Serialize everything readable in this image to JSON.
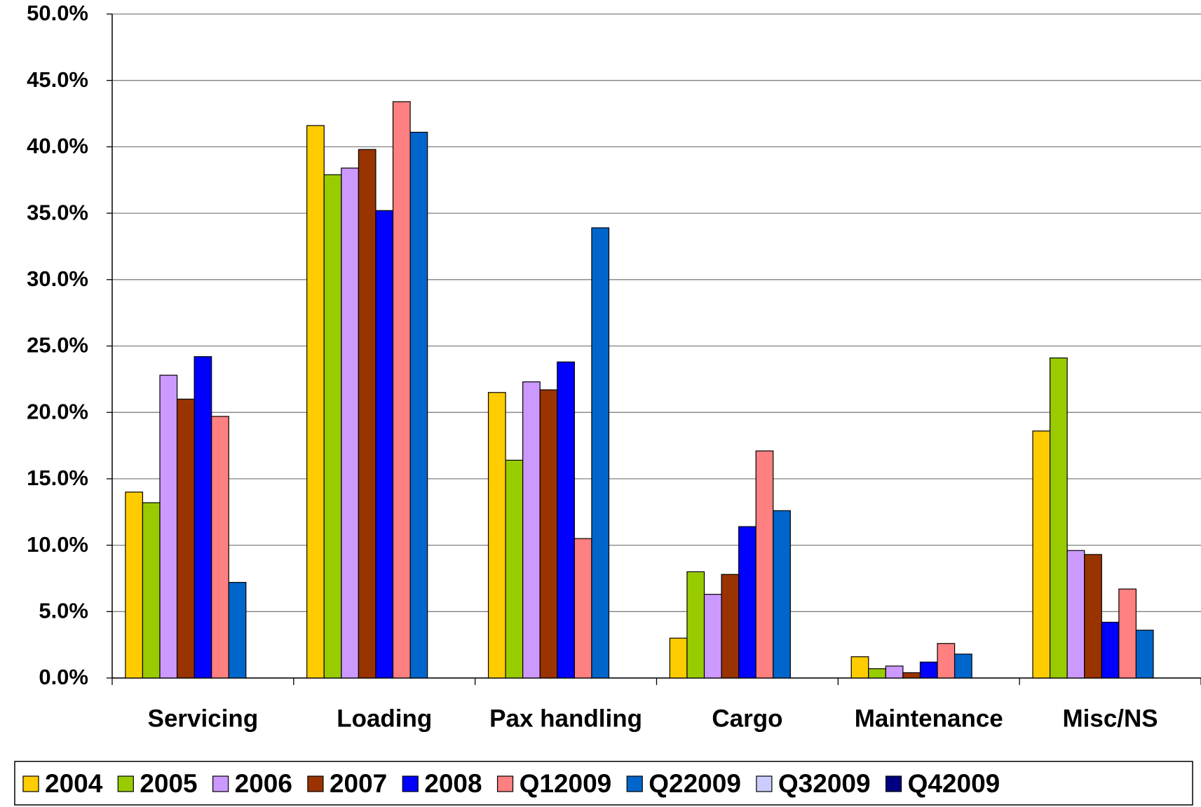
{
  "chart_data": {
    "type": "bar",
    "categories": [
      "Servicing",
      "Loading",
      "Pax handling",
      "Cargo",
      "Maintenance",
      "Misc/NS"
    ],
    "series": [
      {
        "name": "2004",
        "color": "#FFCC00",
        "values": [
          14.0,
          41.6,
          21.5,
          3.0,
          1.6,
          18.6
        ]
      },
      {
        "name": "2005",
        "color": "#99CC00",
        "values": [
          13.2,
          37.9,
          16.4,
          8.0,
          0.7,
          24.1
        ]
      },
      {
        "name": "2006",
        "color": "#CC99FF",
        "values": [
          22.8,
          38.4,
          22.3,
          6.3,
          0.9,
          9.6
        ]
      },
      {
        "name": "2007",
        "color": "#993300",
        "values": [
          21.0,
          39.8,
          21.7,
          7.8,
          0.4,
          9.3
        ]
      },
      {
        "name": "2008",
        "color": "#0000FF",
        "values": [
          24.2,
          35.2,
          23.8,
          11.4,
          1.2,
          4.2
        ]
      },
      {
        "name": "Q12009",
        "color": "#FF8080",
        "values": [
          19.7,
          43.4,
          10.5,
          17.1,
          2.6,
          6.7
        ]
      },
      {
        "name": "Q22009",
        "color": "#0066CC",
        "values": [
          7.2,
          41.1,
          33.9,
          12.6,
          1.8,
          3.6
        ]
      },
      {
        "name": "Q32009",
        "color": "#CCCCFF",
        "values": [
          null,
          null,
          null,
          null,
          null,
          null
        ]
      },
      {
        "name": "Q42009",
        "color": "#000080",
        "values": [
          null,
          null,
          null,
          null,
          null,
          null
        ]
      }
    ],
    "ylim": [
      0,
      50
    ],
    "yticks": [
      {
        "value": 0,
        "label": "0.0%"
      },
      {
        "value": 5,
        "label": "5.0%"
      },
      {
        "value": 10,
        "label": "10.0%"
      },
      {
        "value": 15,
        "label": "15.0%"
      },
      {
        "value": 20,
        "label": "20.0%"
      },
      {
        "value": 25,
        "label": "25.0%"
      },
      {
        "value": 30,
        "label": "30.0%"
      },
      {
        "value": 35,
        "label": "35.0%"
      },
      {
        "value": 40,
        "label": "40.0%"
      },
      {
        "value": 45,
        "label": "45.0%"
      },
      {
        "value": 50,
        "label": "50.0%"
      }
    ],
    "grid": true,
    "legend": "bottom"
  }
}
